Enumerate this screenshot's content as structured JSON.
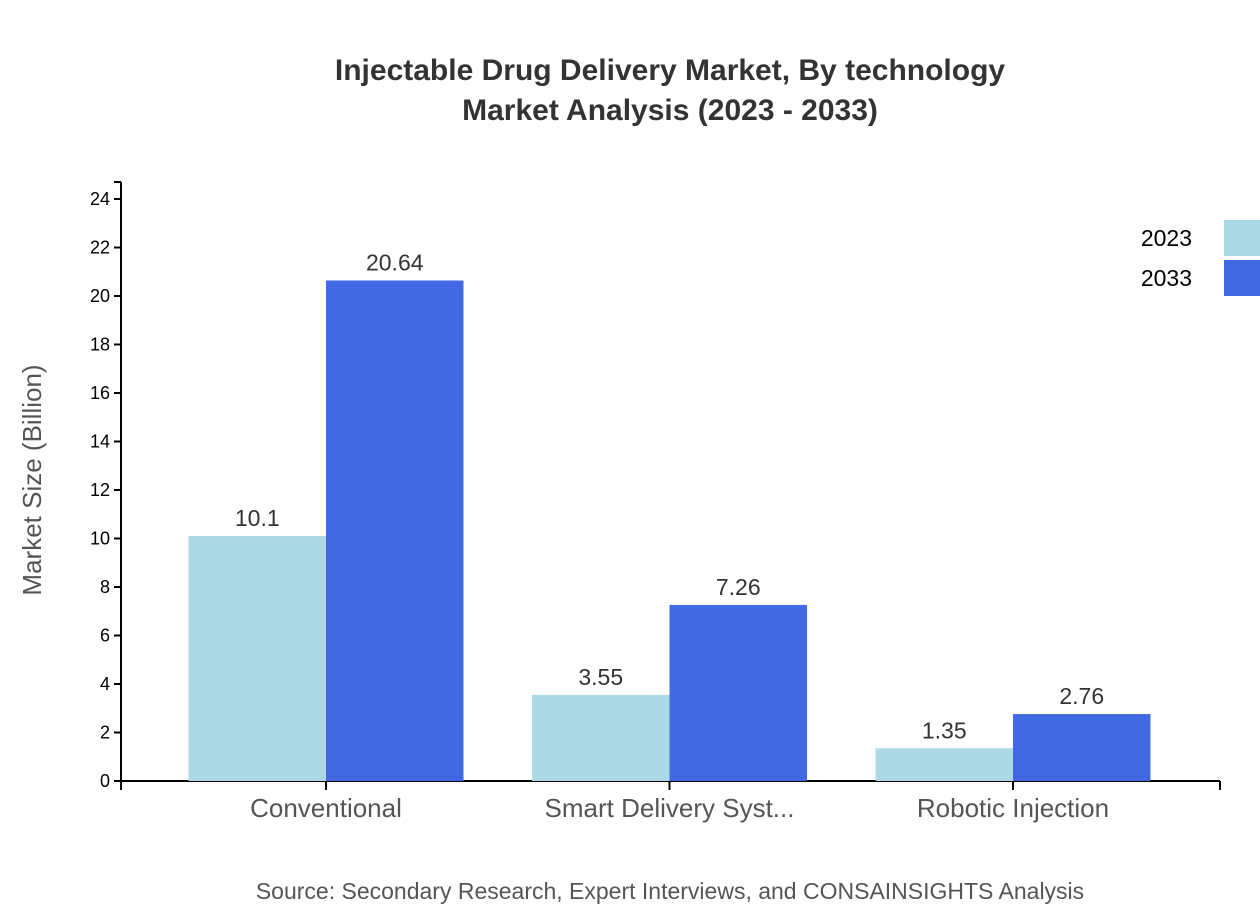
{
  "chart_data": {
    "type": "bar",
    "title": [
      "Injectable Drug Delivery Market, By technology",
      "Market Analysis (2023 - 2033)"
    ],
    "xlabel": "",
    "ylabel": "Market Size (Billion)",
    "categories": [
      "Conventional",
      "Smart Delivery Syst...",
      "Robotic Injection"
    ],
    "series": [
      {
        "name": "2023",
        "values": [
          10.1,
          3.55,
          1.35
        ],
        "color": "#ADD8E6"
      },
      {
        "name": "2033",
        "values": [
          20.64,
          7.26,
          2.76
        ],
        "color": "#4169E1"
      }
    ],
    "ylim": [
      0,
      24.7
    ],
    "yticks": [
      0,
      2,
      4,
      6,
      8,
      10,
      12,
      14,
      16,
      18,
      20,
      22,
      24
    ],
    "grid": false,
    "legend_position": "top-right",
    "source": "Source: Secondary Research, Expert Interviews, and CONSAINSIGHTS Analysis"
  }
}
